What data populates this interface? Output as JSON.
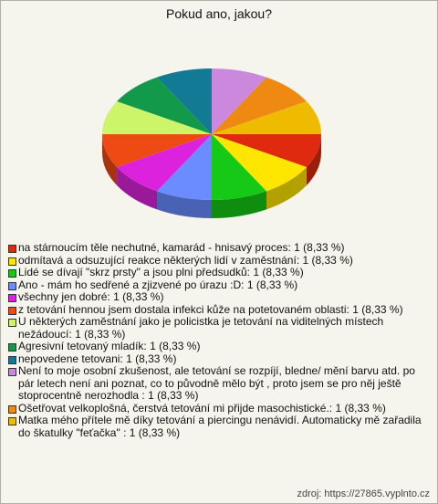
{
  "chart_data": {
    "type": "pie3d",
    "title": "Pokud ano, jakou?",
    "categories": [
      "na stárnoucím těle nechutné, kamarád - hnisavý proces:",
      "odmítavá a odsuzující reakce některých lidí v zaměstnání:",
      "Lidé se dívají \"skrz prsty\" a jsou plni předsudků:",
      "Ano - mám ho sedřené a zjizvené po úrazu :D:",
      "všechny jen dobré:",
      "z tetování hennou jsem dostala infekci kůže na potetovaném oblasti:",
      "U některých zaměstnání jako je policistka je tetování na viditelných místech nežádoucí:",
      "Agresivní tetovaný mladík:",
      "nepovedene tetovani:",
      "Není to moje osobní zkušenost, ale tetování se rozpíjí, bledne/ mění barvu atd. po pár letech není ani poznat, co to původně mělo být , proto jsem se pro něj ještě stoprocentně nerozhodla :",
      "Ošetřovat velkoplošná, čerstvá tetování mi přijde masochistické.:",
      "Matka mého přítele mě díky tetování a piercingu nenávidí. Automaticky mě zařadila do škatulky \"feťačka\" :"
    ],
    "values": [
      1,
      1,
      1,
      1,
      1,
      1,
      1,
      1,
      1,
      1,
      1,
      1
    ],
    "value_labels": [
      "1 (8,33 %)",
      "1 (8,33 %)",
      "1 (8,33 %)",
      "1 (8,33 %)",
      "1 (8,33 %)",
      "1 (8,33 %)",
      "1 (8,33 %)",
      "1 (8,33 %)",
      "1 (8,33 %)",
      "1 (8,33 %)",
      "1 (8,33 %)",
      "1 (8,33 %)"
    ],
    "colors": [
      "#e02a10",
      "#ffe600",
      "#16c916",
      "#6a8cff",
      "#dc22dc",
      "#ee4a14",
      "#ccf56a",
      "#129a4a",
      "#137a96",
      "#cc88dd",
      "#ee8a12",
      "#eebb00"
    ],
    "source": "zdroj: https://27865.vyplnto.cz"
  }
}
